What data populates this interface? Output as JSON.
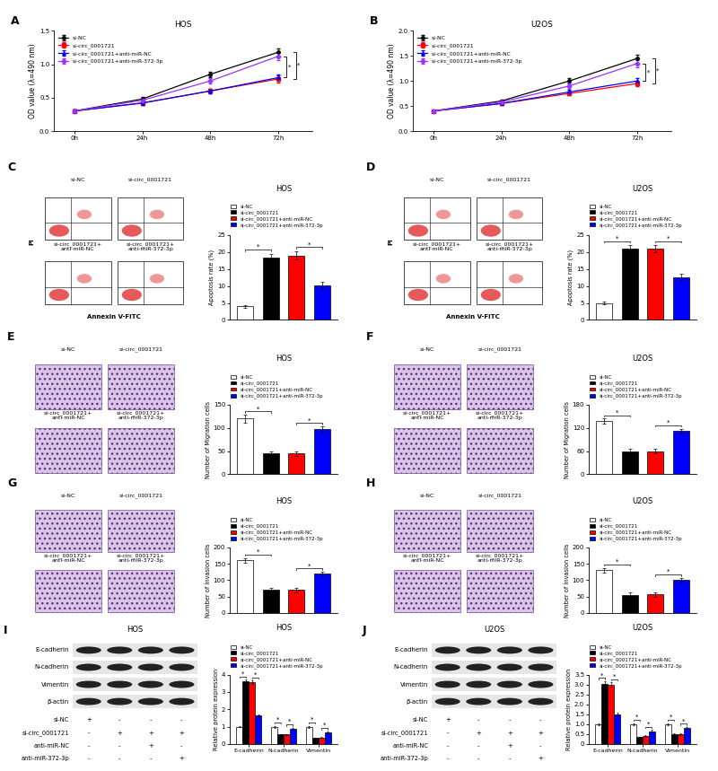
{
  "chart_data": [
    {
      "type": "line",
      "panel": "A",
      "title": "HOS",
      "categories": [
        "0h",
        "24h",
        "48h",
        "72h"
      ],
      "ylabel": "OD value (λ=490 nm)",
      "ylim": [
        0,
        1.5
      ],
      "yticks": [
        {
          "value": 0,
          "label": "0.0"
        },
        0.5,
        {
          "value": 1,
          "label": "1.0"
        },
        1.5
      ],
      "legend": "upper left",
      "series": [
        {
          "name": "si-NC",
          "color": "#000000",
          "marker": "circle",
          "values": [
            0.3,
            0.48,
            0.85,
            1.18
          ],
          "errors": [
            0.02,
            0.03,
            0.04,
            0.06
          ]
        },
        {
          "name": "si-circ_0001721",
          "color": "#ff0000",
          "marker": "square",
          "values": [
            0.3,
            0.42,
            0.6,
            0.78
          ],
          "errors": [
            0.02,
            0.03,
            0.03,
            0.05
          ]
        },
        {
          "name": "si-circ_0001721+anti-miR-NC",
          "color": "#0000ff",
          "marker": "triangle",
          "values": [
            0.3,
            0.42,
            0.6,
            0.8
          ],
          "errors": [
            0.02,
            0.03,
            0.03,
            0.05
          ]
        },
        {
          "name": "si-circ_0001721+anti-miR-372-3p",
          "color": "#9933ff",
          "marker": "diamond",
          "values": [
            0.3,
            0.46,
            0.75,
            1.12
          ],
          "errors": [
            0.02,
            0.03,
            0.04,
            0.06
          ]
        }
      ],
      "significance": {
        "pairs": [
          [
            "si-circ_0001721+anti-miR-NC",
            "si-circ_0001721+anti-miR-372-3p"
          ],
          [
            "si-NC",
            "si-circ_0001721"
          ]
        ],
        "label": "*"
      }
    },
    {
      "type": "line",
      "panel": "B",
      "title": "U2OS",
      "categories": [
        "0h",
        "24h",
        "48h",
        "72h"
      ],
      "ylabel": "OD value (λ=490 nm)",
      "ylim": [
        0,
        2
      ],
      "yticks": [
        {
          "value": 0,
          "label": "0.0"
        },
        0.5,
        {
          "value": 1,
          "label": "1.0"
        },
        1.5,
        {
          "value": 2,
          "label": "2.0"
        }
      ],
      "legend": "upper left",
      "series": [
        {
          "name": "si-NC",
          "color": "#000000",
          "marker": "circle",
          "values": [
            0.4,
            0.6,
            1.0,
            1.45
          ],
          "errors": [
            0.02,
            0.03,
            0.05,
            0.08
          ]
        },
        {
          "name": "si-circ_0001721",
          "color": "#ff0000",
          "marker": "square",
          "values": [
            0.4,
            0.55,
            0.75,
            0.95
          ],
          "errors": [
            0.02,
            0.03,
            0.04,
            0.06
          ]
        },
        {
          "name": "si-circ_0001721+anti-miR-NC",
          "color": "#0000ff",
          "marker": "triangle",
          "values": [
            0.4,
            0.55,
            0.78,
            1.0
          ],
          "errors": [
            0.02,
            0.03,
            0.04,
            0.06
          ]
        },
        {
          "name": "si-circ_0001721+anti-miR-372-3p",
          "color": "#9933ff",
          "marker": "diamond",
          "values": [
            0.4,
            0.58,
            0.9,
            1.35
          ],
          "errors": [
            0.02,
            0.03,
            0.05,
            0.07
          ]
        }
      ],
      "significance": {
        "pairs": [
          [
            "si-circ_0001721+anti-miR-NC",
            "si-circ_0001721+anti-miR-372-3p"
          ],
          [
            "si-NC",
            "si-circ_0001721"
          ]
        ],
        "label": "*"
      }
    },
    {
      "type": "bar",
      "title": "HOS",
      "categories": [
        "si-NC",
        "si-circ_0001721",
        "si-circ_0001721+anti-miR-NC",
        "si-circ_0001721+anti-miR-372-3p"
      ],
      "colors": [
        "#ffffff",
        "#000000",
        "#ff0000",
        "#0000ff"
      ],
      "values": [
        4,
        18.5,
        19,
        10.2
      ],
      "errors": [
        0.4,
        1.0,
        1.2,
        1.0
      ],
      "ylabel": "Apoptosis rate (%)",
      "ylim": [
        0,
        25
      ],
      "yticks": [
        0,
        5,
        10,
        15,
        20,
        25
      ],
      "legend": "above",
      "tick_labels": "y",
      "significance": {
        "pairs": [
          [
            "si-NC",
            "si-circ_0001721"
          ],
          [
            "si-circ_0001721+anti-miR-NC",
            "si-circ_0001721+anti-miR-372-3p"
          ]
        ],
        "label": "*"
      }
    },
    {
      "type": "bar",
      "title": "U2OS",
      "categories": [
        "si-NC",
        "si-circ_0001721",
        "si-circ_0001721+anti-miR-NC",
        "si-circ_0001721+anti-miR-372-3p"
      ],
      "colors": [
        "#ffffff",
        "#000000",
        "#ff0000",
        "#0000ff"
      ],
      "values": [
        5,
        21,
        21,
        12.5
      ],
      "errors": [
        0.3,
        1.0,
        1.0,
        1.0
      ],
      "ylabel": "Apoptosis rate (%)",
      "ylim": [
        0,
        25
      ],
      "yticks": [
        0,
        5,
        10,
        15,
        20,
        25
      ],
      "legend": "above",
      "tick_labels": "y",
      "significance": {
        "pairs": [
          [
            "si-NC",
            "si-circ_0001721"
          ],
          [
            "si-circ_0001721+anti-miR-NC",
            "si-circ_0001721+anti-miR-372-3p"
          ]
        ],
        "label": "*"
      }
    },
    {
      "type": "bar",
      "title": "HOS",
      "categories": [
        "si-NC",
        "si-circ_0001721",
        "si-circ_0001721+anti-miR-NC",
        "si-circ_0001721+anti-miR-372-3p"
      ],
      "colors": [
        "#ffffff",
        "#000000",
        "#ff0000",
        "#0000ff"
      ],
      "values": [
        120,
        45,
        45,
        97
      ],
      "errors": [
        8,
        4,
        5,
        6
      ],
      "ylabel": "Number of Migration cells",
      "ylim": [
        0,
        150
      ],
      "yticks": [
        0,
        50,
        100,
        150
      ],
      "legend": "above",
      "tick_labels": "y",
      "significance": {
        "pairs": [
          [
            "si-NC",
            "si-circ_0001721"
          ],
          [
            "si-circ_0001721+anti-miR-NC",
            "si-circ_0001721+anti-miR-372-3p"
          ]
        ],
        "label": "*"
      }
    },
    {
      "type": "bar",
      "title": "U2OS",
      "categories": [
        "si-NC",
        "si-circ_0001721",
        "si-circ_0001721+anti-miR-NC",
        "si-circ_0001721+anti-miR-372-3p"
      ],
      "colors": [
        "#ffffff",
        "#000000",
        "#ff0000",
        "#0000ff"
      ],
      "values": [
        138,
        60,
        60,
        112
      ],
      "errors": [
        6,
        6,
        6,
        6
      ],
      "ylabel": "Number of Migration cells",
      "ylim": [
        0,
        180
      ],
      "yticks": [
        0,
        60,
        120,
        180
      ],
      "legend": "above",
      "tick_labels": "y",
      "significance": {
        "pairs": [
          [
            "si-NC",
            "si-circ_0001721"
          ],
          [
            "si-circ_0001721+anti-miR-NC",
            "si-circ_0001721+anti-miR-372-3p"
          ]
        ],
        "label": "*"
      }
    },
    {
      "type": "bar",
      "title": "HOS",
      "categories": [
        "si-NC",
        "si-circ_0001721",
        "si-circ_0001721+anti-miR-NC",
        "si-circ_0001721+anti-miR-372-3p"
      ],
      "colors": [
        "#ffffff",
        "#000000",
        "#ff0000",
        "#0000ff"
      ],
      "values": [
        160,
        70,
        70,
        120
      ],
      "errors": [
        8,
        7,
        7,
        6
      ],
      "ylabel": "Number of Invasion cells",
      "ylim": [
        0,
        200
      ],
      "yticks": [
        0,
        50,
        100,
        150,
        200
      ],
      "legend": "above",
      "tick_labels": "y",
      "significance": {
        "pairs": [
          [
            "si-NC",
            "si-circ_0001721"
          ],
          [
            "si-circ_0001721+anti-miR-NC",
            "si-circ_0001721+anti-miR-372-3p"
          ]
        ],
        "label": "*"
      }
    },
    {
      "type": "bar",
      "title": "U2OS",
      "categories": [
        "si-NC",
        "si-circ_0001721",
        "si-circ_0001721+anti-miR-NC",
        "si-circ_0001721+anti-miR-372-3p"
      ],
      "colors": [
        "#ffffff",
        "#000000",
        "#ff0000",
        "#0000ff"
      ],
      "values": [
        130,
        55,
        57,
        100
      ],
      "errors": [
        8,
        8,
        7,
        7
      ],
      "ylabel": "Number of Invasion cells",
      "ylim": [
        0,
        200
      ],
      "yticks": [
        0,
        50,
        100,
        150,
        200
      ],
      "legend": "above",
      "tick_labels": "y",
      "significance": {
        "pairs": [
          [
            "si-NC",
            "si-circ_0001721"
          ],
          [
            "si-circ_0001721+anti-miR-NC",
            "si-circ_0001721+anti-miR-372-3p"
          ]
        ],
        "label": "*"
      }
    },
    {
      "type": "bar",
      "title": "HOS",
      "categories": [
        "E-cadherin",
        "N-cadherin",
        "Vimentin"
      ],
      "ylabel": "Relative protein expression",
      "ylim": [
        0,
        4
      ],
      "yticks": [
        0,
        1,
        2,
        3,
        4
      ],
      "legend": "above",
      "series": [
        {
          "name": "si-NC",
          "color": "#ffffff",
          "values": [
            1,
            1,
            1
          ],
          "errors": [
            0.03,
            0.05,
            0.05
          ]
        },
        {
          "name": "si-circ_0001721",
          "color": "#000000",
          "values": [
            3.6,
            0.55,
            0.35
          ],
          "errors": [
            0.1,
            0.04,
            0.03
          ]
        },
        {
          "name": "si-circ_0001721+anti-miR-NC",
          "color": "#ff0000",
          "values": [
            3.55,
            0.55,
            0.38
          ],
          "errors": [
            0.1,
            0.04,
            0.03
          ]
        },
        {
          "name": "si-circ_0001721+anti-miR-372-3p",
          "color": "#0000ff",
          "values": [
            1.65,
            0.88,
            0.68
          ],
          "errors": [
            0.06,
            0.05,
            0.05
          ]
        }
      ],
      "significance": {
        "pairs": [
          [
            "si-NC",
            "si-circ_0001721"
          ],
          [
            "si-circ_0001721+anti-miR-NC",
            "si-circ_0001721+anti-miR-372-3p"
          ]
        ],
        "label": "*"
      }
    },
    {
      "type": "bar",
      "title": "U2OS",
      "categories": [
        "E-cadherin",
        "N-cadherin",
        "Vimentin"
      ],
      "ylabel": "Relative protein expression",
      "ylim": [
        0,
        3.5
      ],
      "yticks": [
        0,
        0.5,
        {
          "value": 1,
          "label": "1.0"
        },
        1.5,
        {
          "value": 2,
          "label": "2.0"
        },
        2.5,
        {
          "value": 3,
          "label": "3.0"
        },
        3.5
      ],
      "legend": "above",
      "series": [
        {
          "name": "si-NC",
          "color": "#ffffff",
          "values": [
            1,
            1,
            1
          ],
          "errors": [
            0.04,
            0.05,
            0.05
          ]
        },
        {
          "name": "si-circ_0001721",
          "color": "#000000",
          "values": [
            3.05,
            0.35,
            0.5
          ],
          "errors": [
            0.1,
            0.03,
            0.04
          ]
        },
        {
          "name": "si-circ_0001721+anti-miR-NC",
          "color": "#ff0000",
          "values": [
            3.0,
            0.4,
            0.48
          ],
          "errors": [
            0.1,
            0.03,
            0.04
          ]
        },
        {
          "name": "si-circ_0001721+anti-miR-372-3p",
          "color": "#0000ff",
          "values": [
            1.5,
            0.65,
            0.8
          ],
          "errors": [
            0.06,
            0.05,
            0.05
          ]
        }
      ],
      "significance": {
        "pairs": [
          [
            "si-NC",
            "si-circ_0001721"
          ],
          [
            "si-circ_0001721+anti-miR-NC",
            "si-circ_0001721+anti-miR-372-3p"
          ]
        ],
        "label": "*"
      }
    }
  ],
  "image_panels": [
    {
      "panel": "C",
      "type": "flow",
      "labels": [
        "si-NC",
        "si-circ_0001721",
        "si-circ_0001721+\nanti-miR-NC",
        "si-circ_0001721+\nanti-miR-372-3p"
      ],
      "xlabel": "Annexin V-FITC",
      "ylabel": "PI"
    },
    {
      "panel": "D",
      "type": "flow",
      "labels": [
        "si-NC",
        "si-circ_0001721",
        "si-circ_0001721+\nanti-miR-NC",
        "si-circ_0001721+\nanti-miR-372-3p"
      ],
      "xlabel": "Annexin V-FITC",
      "ylabel": "PI"
    },
    {
      "panel": "E",
      "type": "transwell",
      "labels": [
        "si-NC",
        "si-circ_0001721",
        "si-circ_0001721+\nanti-miR-NC",
        "si-circ_0001721+\nanti-miR-372-3p"
      ]
    },
    {
      "panel": "F",
      "type": "transwell",
      "labels": [
        "si-NC",
        "si-circ_0001721",
        "si-circ_0001721+\nanti-miR-NC",
        "si-circ_0001721+\nanti-miR-372-3p"
      ]
    },
    {
      "panel": "G",
      "type": "transwell",
      "labels": [
        "si-NC",
        "si-circ_0001721",
        "si-circ_0001721+\nanti-miR-NC",
        "si-circ_0001721+\nanti-miR-372-3p"
      ]
    },
    {
      "panel": "H",
      "type": "transwell",
      "labels": [
        "si-NC",
        "si-circ_0001721",
        "si-circ_0001721+\nanti-miR-NC",
        "si-circ_0001721+\nanti-miR-372-3p"
      ]
    }
  ],
  "blots": [
    {
      "panel": "I",
      "title": "HOS",
      "rows": [
        "E-cadherin",
        "N-cadherin",
        "Vimentin",
        "β-actin"
      ],
      "lanes": [
        {
          "name": "si-NC",
          "marks": [
            "+",
            "-",
            "-",
            "-"
          ]
        },
        {
          "name": "si-circ_0001721",
          "marks": [
            "-",
            "+",
            "+",
            "+"
          ]
        },
        {
          "name": "anti-miR-NC",
          "marks": [
            "-",
            "-",
            "+",
            "-"
          ]
        },
        {
          "name": "anti-miR-372-3p",
          "marks": [
            "-",
            "-",
            "-",
            "+"
          ]
        }
      ]
    },
    {
      "panel": "J",
      "title": "U2OS",
      "rows": [
        "E-cadherin",
        "N-cadherin",
        "Vimentin",
        "β-actin"
      ],
      "lanes": [
        {
          "name": "si-NC",
          "marks": [
            "+",
            "-",
            "-",
            "-"
          ]
        },
        {
          "name": "si-circ_0001721",
          "marks": [
            "-",
            "+",
            "+",
            "+"
          ]
        },
        {
          "name": "anti-miR-NC",
          "marks": [
            "-",
            "-",
            "+",
            "-"
          ]
        },
        {
          "name": "anti-miR-372-3p",
          "marks": [
            "-",
            "-",
            "-",
            "+"
          ]
        }
      ]
    }
  ]
}
